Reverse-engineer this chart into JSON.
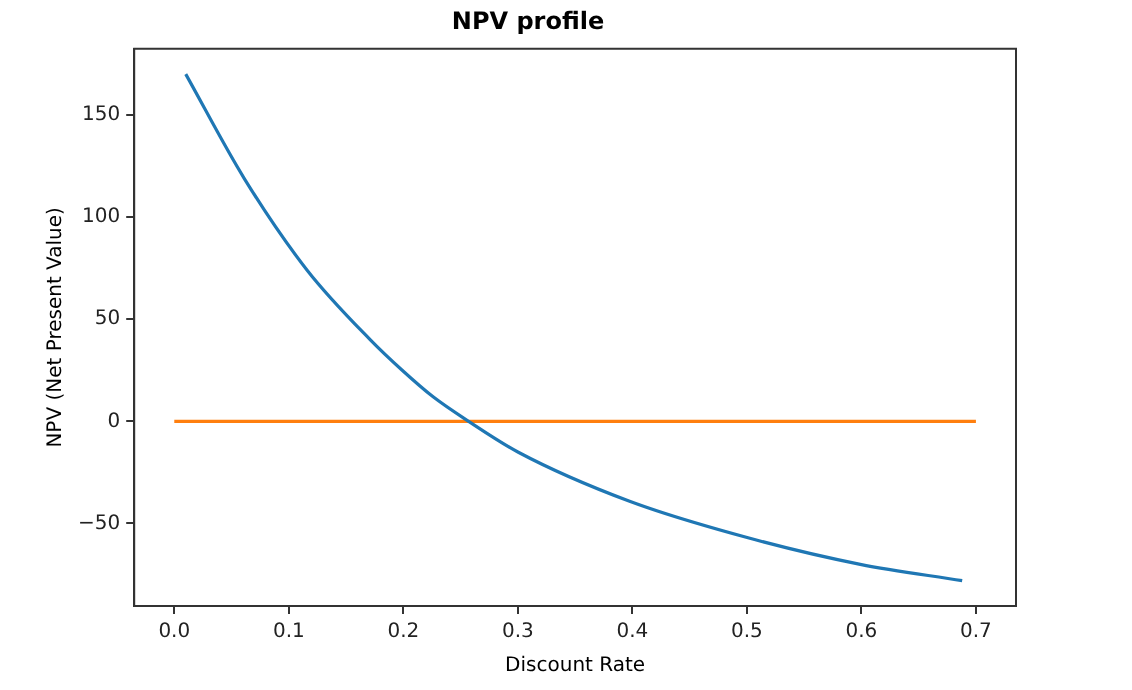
{
  "chart_data": {
    "type": "line",
    "title": "NPV profile",
    "xlabel": "Discount Rate",
    "ylabel": "NPV (Net Present Value)",
    "series": [
      {
        "color": "#1f77b4",
        "x": [
          0.01,
          0.061,
          0.116,
          0.171,
          0.199,
          0.226,
          0.257,
          0.3,
          0.397,
          0.501,
          0.599,
          0.688
        ],
        "values": [
          170,
          119,
          74,
          40,
          25,
          12,
          0,
          -15,
          -39,
          -57,
          -70,
          -78
        ]
      },
      {
        "color": "#ff7f0e",
        "x": [
          0,
          0.7
        ],
        "values": [
          0,
          0
        ]
      }
    ],
    "xlim": [
      -0.035,
      0.735
    ],
    "ylim": [
      -90.4,
      182.4
    ],
    "xticks": [
      {
        "value": 0,
        "label": "0.0"
      },
      0.1,
      0.2,
      0.3,
      0.4,
      0.5,
      0.6,
      0.7
    ],
    "yticks": [
      {
        "value": -50,
        "label": "−50"
      },
      0,
      50,
      100,
      150
    ],
    "grid": false,
    "legend": false,
    "marker": "none",
    "line_style": "solid"
  }
}
